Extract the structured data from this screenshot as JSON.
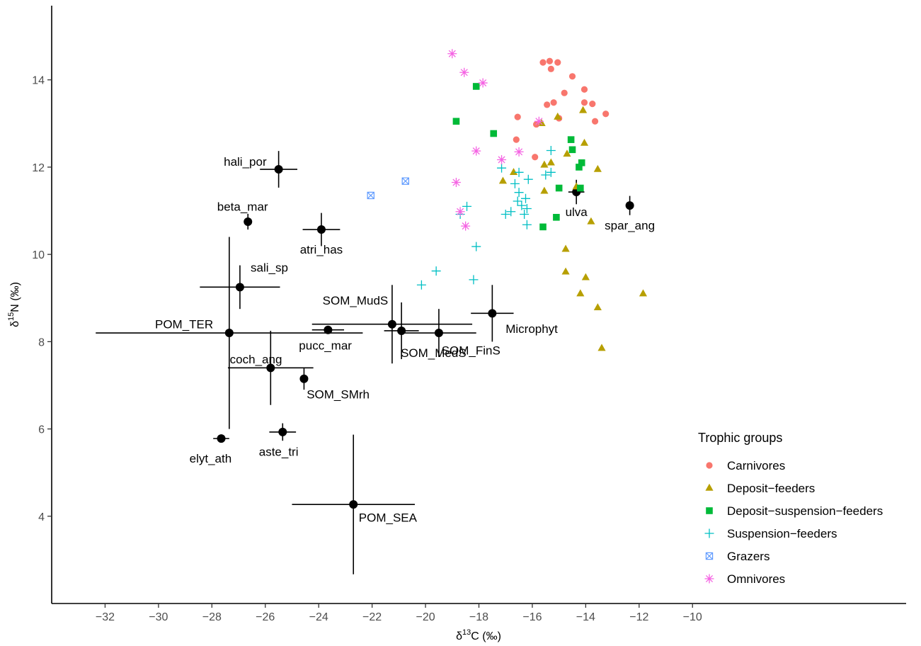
{
  "chart_data": {
    "type": "scatter",
    "xlabel_prefix": "δ",
    "xlabel_sup": "13",
    "xlabel_suffix": "C (‰)",
    "ylabel_prefix": "δ",
    "ylabel_sup": "15",
    "ylabel_suffix": "N (‰)",
    "xlim": [
      -34.0,
      -2.0
    ],
    "ylim": [
      2.0,
      15.7
    ],
    "x_ticks": [
      -32,
      -30,
      -28,
      -26,
      -24,
      -22,
      -20,
      -18,
      -16,
      -14,
      -12,
      -10
    ],
    "y_ticks": [
      4,
      6,
      8,
      10,
      12,
      14
    ],
    "x_tick_labels": [
      "−32",
      "−30",
      "−28",
      "−26",
      "−24",
      "−22",
      "−20",
      "−18",
      "−16",
      "−14",
      "−12",
      "−10"
    ],
    "y_tick_labels": [
      "4",
      "6",
      "8",
      "10",
      "12",
      "14"
    ],
    "grid": false,
    "legend_position": "bottom-right",
    "legend_title": "Trophic groups",
    "sources": [
      {
        "label": "hali_por",
        "x": -25.5,
        "y": 11.95,
        "xerr": 0.7,
        "yerr": 0.42,
        "label_dx": -0.45,
        "label_dy": 0.18,
        "anchor": "end"
      },
      {
        "label": "beta_mar",
        "x": -26.65,
        "y": 10.75,
        "xerr": 0.0,
        "yerr": 0.18,
        "label_dx": -0.2,
        "label_dy": 0.35,
        "anchor": "middle"
      },
      {
        "label": "atri_has",
        "x": -23.9,
        "y": 10.57,
        "xerr": 0.7,
        "yerr": 0.38,
        "label_dx": 0.0,
        "label_dy": -0.45,
        "anchor": "middle"
      },
      {
        "label": "sali_sp",
        "x": -26.95,
        "y": 9.25,
        "xerr": 1.5,
        "yerr": 0.5,
        "label_dx": 0.4,
        "label_dy": 0.45,
        "anchor": "start"
      },
      {
        "label": "POM_TER",
        "x": -27.35,
        "y": 8.2,
        "xerr": 5.0,
        "yerr": 2.2,
        "label_dx": -0.6,
        "label_dy": 0.2,
        "anchor": "end"
      },
      {
        "label": "pucc_mar",
        "x": -23.65,
        "y": 8.27,
        "xerr": 0.6,
        "yerr": 0.0,
        "label_dx": -0.1,
        "label_dy": -0.35,
        "anchor": "middle"
      },
      {
        "label": "SOM_MudS",
        "x": -21.25,
        "y": 8.4,
        "xerr": 3.0,
        "yerr": 0.9,
        "label_dx": -0.15,
        "label_dy": 0.55,
        "anchor": "end"
      },
      {
        "label": "SOM_MedS",
        "x": -20.9,
        "y": 8.25,
        "xerr": 0.65,
        "yerr": 0.65,
        "label_dx": 1.2,
        "label_dy": -0.5,
        "anchor": "middle"
      },
      {
        "label": "SOM_FinS",
        "x": -19.5,
        "y": 8.2,
        "xerr": 1.4,
        "yerr": 0.55,
        "label_dx": 0.1,
        "label_dy": -0.4,
        "anchor": "start"
      },
      {
        "label": "Microphyt",
        "x": -17.5,
        "y": 8.65,
        "xerr": 0.8,
        "yerr": 0.65,
        "label_dx": 0.5,
        "label_dy": -0.35,
        "anchor": "start"
      },
      {
        "label": "coch_ang",
        "x": -25.8,
        "y": 7.4,
        "xerr": 1.6,
        "yerr": 0.85,
        "label_dx": -0.55,
        "label_dy": 0.2,
        "anchor": "middle"
      },
      {
        "label": "SOM_SMrh",
        "x": -24.55,
        "y": 7.15,
        "xerr": 0.0,
        "yerr": 0.25,
        "label_dx": 0.1,
        "label_dy": -0.35,
        "anchor": "start"
      },
      {
        "label": "elyt_ath",
        "x": -27.65,
        "y": 5.78,
        "xerr": 0.3,
        "yerr": 0.0,
        "label_dx": -0.4,
        "label_dy": -0.45,
        "anchor": "middle"
      },
      {
        "label": "aste_tri",
        "x": -25.35,
        "y": 5.93,
        "xerr": 0.5,
        "yerr": 0.2,
        "label_dx": -0.15,
        "label_dy": -0.45,
        "anchor": "middle"
      },
      {
        "label": "POM_SEA",
        "x": -22.7,
        "y": 4.27,
        "xerr": 2.3,
        "yerr": 1.6,
        "label_dx": 0.2,
        "label_dy": -0.3,
        "anchor": "start"
      },
      {
        "label": "ulva",
        "x": -14.35,
        "y": 11.43,
        "xerr": 0.3,
        "yerr": 0.28,
        "label_dx": 0.0,
        "label_dy": -0.45,
        "anchor": "middle"
      },
      {
        "label": "spar_ang",
        "x": -12.35,
        "y": 11.12,
        "xerr": 0.0,
        "yerr": 0.22,
        "label_dx": 0.0,
        "label_dy": -0.45,
        "anchor": "middle"
      }
    ],
    "series": [
      {
        "name": "Carnivores",
        "color": "#F8766D",
        "shape": "circle",
        "x": [
          -15.6,
          -15.35,
          -15.05,
          -15.3,
          -14.5,
          -14.05,
          -13.75,
          -14.8,
          -15.2,
          -15.45,
          -14.05,
          -13.25,
          -16.55,
          -16.6,
          -15.0,
          -15.85,
          -13.65,
          -15.9
        ],
        "y": [
          14.4,
          14.43,
          14.4,
          14.25,
          14.08,
          13.78,
          13.45,
          13.7,
          13.48,
          13.43,
          13.48,
          13.22,
          13.15,
          12.63,
          13.12,
          12.98,
          13.05,
          12.23
        ]
      },
      {
        "name": "Deposit-feeders",
        "color": "#B79F00",
        "shape": "triangle",
        "x": [
          -14.1,
          -15.05,
          -15.65,
          -14.7,
          -14.05,
          -13.55,
          -15.55,
          -15.3,
          -16.7,
          -17.1,
          -15.55,
          -14.35,
          -13.8,
          -14.75,
          -14.75,
          -14.0,
          -14.2,
          -13.55,
          -11.85,
          -13.4
        ],
        "y": [
          13.3,
          13.15,
          13.0,
          12.3,
          12.55,
          11.95,
          12.05,
          12.1,
          11.88,
          11.68,
          11.45,
          11.55,
          10.75,
          10.12,
          9.6,
          9.47,
          9.1,
          8.78,
          9.1,
          7.85
        ]
      },
      {
        "name": "Deposit-suspension-feeders",
        "color": "#00BA38",
        "shape": "square",
        "x": [
          -18.1,
          -18.85,
          -17.45,
          -14.55,
          -14.5,
          -14.15,
          -14.25,
          -15.0,
          -14.2,
          -15.1,
          -15.6
        ],
        "y": [
          13.85,
          13.05,
          12.77,
          12.63,
          12.4,
          12.1,
          12.0,
          11.52,
          11.52,
          10.85,
          10.63
        ]
      },
      {
        "name": "Suspension-feeders",
        "color": "#00BFC4",
        "shape": "plus",
        "x": [
          -15.3,
          -17.15,
          -16.5,
          -16.15,
          -15.5,
          -15.3,
          -16.65,
          -16.5,
          -16.25,
          -16.55,
          -16.4,
          -16.2,
          -16.8,
          -17.0,
          -16.3,
          -16.2,
          -18.45,
          -18.7,
          -18.1,
          -18.2,
          -19.6,
          -20.15
        ],
        "y": [
          12.38,
          11.98,
          11.88,
          11.72,
          11.82,
          11.88,
          11.62,
          11.42,
          11.28,
          11.22,
          11.12,
          11.05,
          10.98,
          10.92,
          10.92,
          10.68,
          11.1,
          10.92,
          10.18,
          9.42,
          9.62,
          9.3
        ]
      },
      {
        "name": "Grazers",
        "color": "#619CFF",
        "shape": "boxcross",
        "x": [
          -20.75,
          -22.05
        ],
        "y": [
          11.68,
          11.35
        ]
      },
      {
        "name": "Omnivores",
        "color": "#F564E3",
        "shape": "star",
        "x": [
          -19.0,
          -18.55,
          -17.85,
          -15.75,
          -18.1,
          -17.15,
          -16.5,
          -18.85,
          -18.7,
          -18.5
        ],
        "y": [
          14.6,
          14.17,
          13.93,
          13.05,
          12.37,
          12.17,
          12.35,
          11.65,
          10.98,
          10.65
        ]
      }
    ]
  }
}
